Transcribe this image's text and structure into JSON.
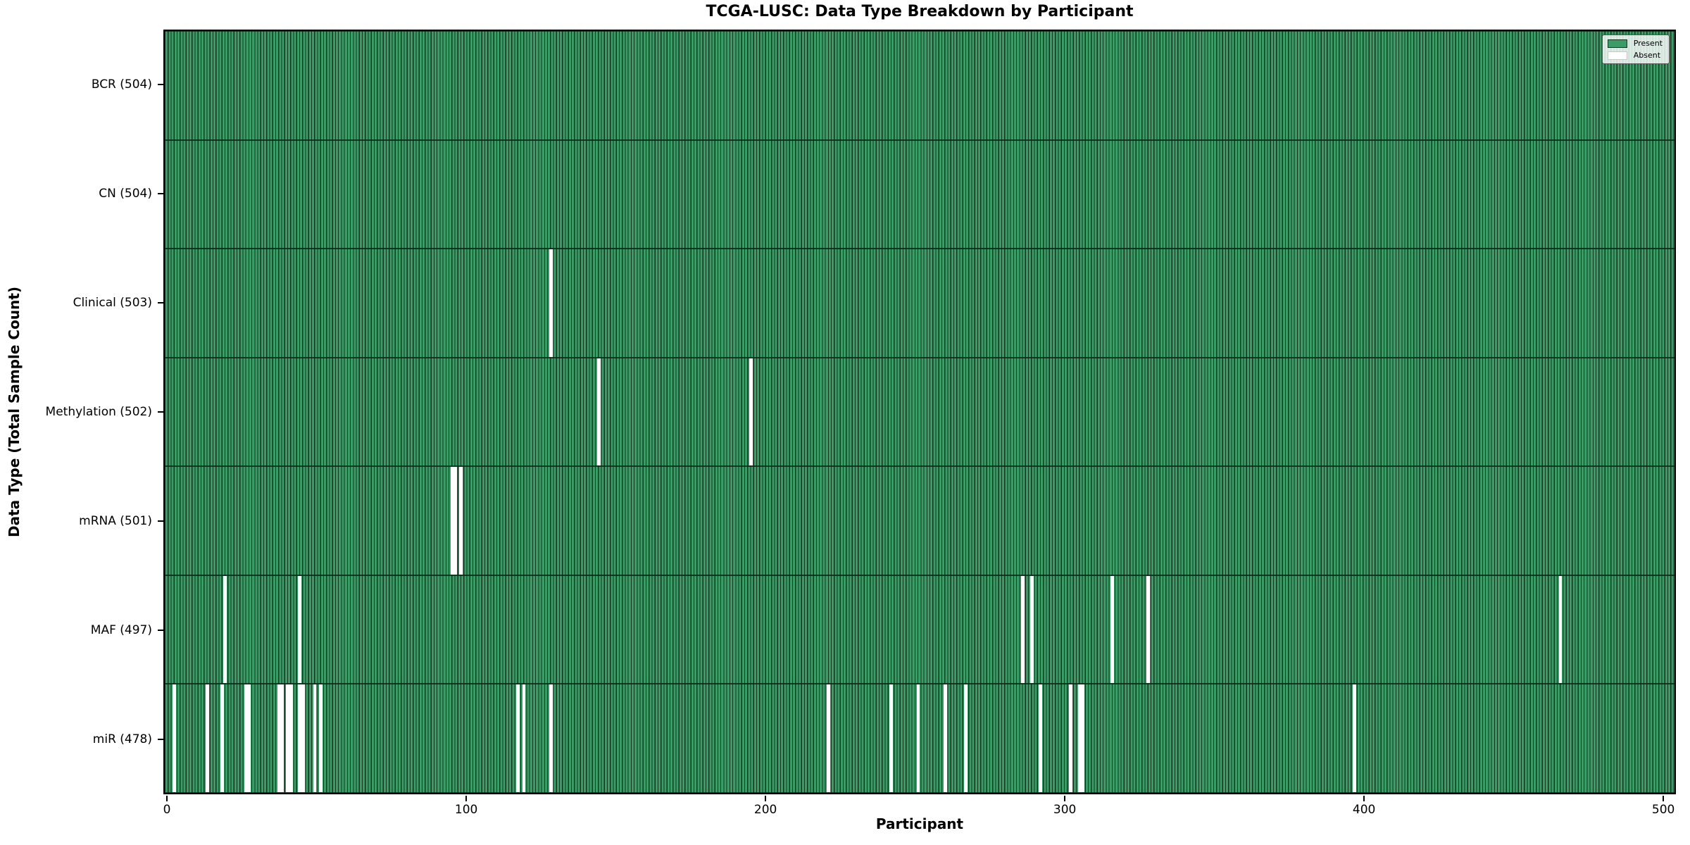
{
  "chart_data": {
    "type": "heatmap",
    "title": "TCGA-LUSC: Data Type Breakdown by Participant",
    "xlabel": "Participant",
    "ylabel": "Data Type (Total Sample Count)",
    "x_ticks": [
      0,
      100,
      200,
      300,
      400,
      500
    ],
    "x_min": -1.2,
    "x_max": 504.2,
    "participants_total": 504,
    "grid": false,
    "legend": {
      "position": "upper right",
      "present_label": "Present",
      "absent_label": "Absent"
    },
    "colors": {
      "present": "#3b9c68",
      "bar_edge": "#12371f",
      "absent": "#ffffff",
      "spine": "#000000",
      "legend_bg": "rgba(255,255,255,0.82)"
    },
    "rows": [
      {
        "name": "BCR",
        "label": "BCR (504)",
        "count": 504,
        "absent": []
      },
      {
        "name": "CN",
        "label": "CN (504)",
        "count": 504,
        "absent": []
      },
      {
        "name": "Clinical",
        "label": "Clinical (503)",
        "count": 503,
        "absent": [
          128
        ]
      },
      {
        "name": "Methylation",
        "label": "Methylation (502)",
        "count": 502,
        "absent": [
          144,
          195
        ]
      },
      {
        "name": "mRNA",
        "label": "mRNA (501)",
        "count": 501,
        "absent": [
          95,
          96,
          98
        ]
      },
      {
        "name": "MAF",
        "label": "MAF (497)",
        "count": 497,
        "absent": [
          19,
          44,
          286,
          289,
          316,
          328,
          466
        ]
      },
      {
        "name": "miR",
        "label": "miR (478)",
        "count": 478,
        "absent": [
          2,
          13,
          18,
          26,
          27,
          37,
          38,
          40,
          41,
          44,
          45,
          49,
          51,
          117,
          119,
          128,
          221,
          242,
          251,
          260,
          267,
          292,
          302,
          305,
          306,
          397
        ]
      }
    ]
  }
}
